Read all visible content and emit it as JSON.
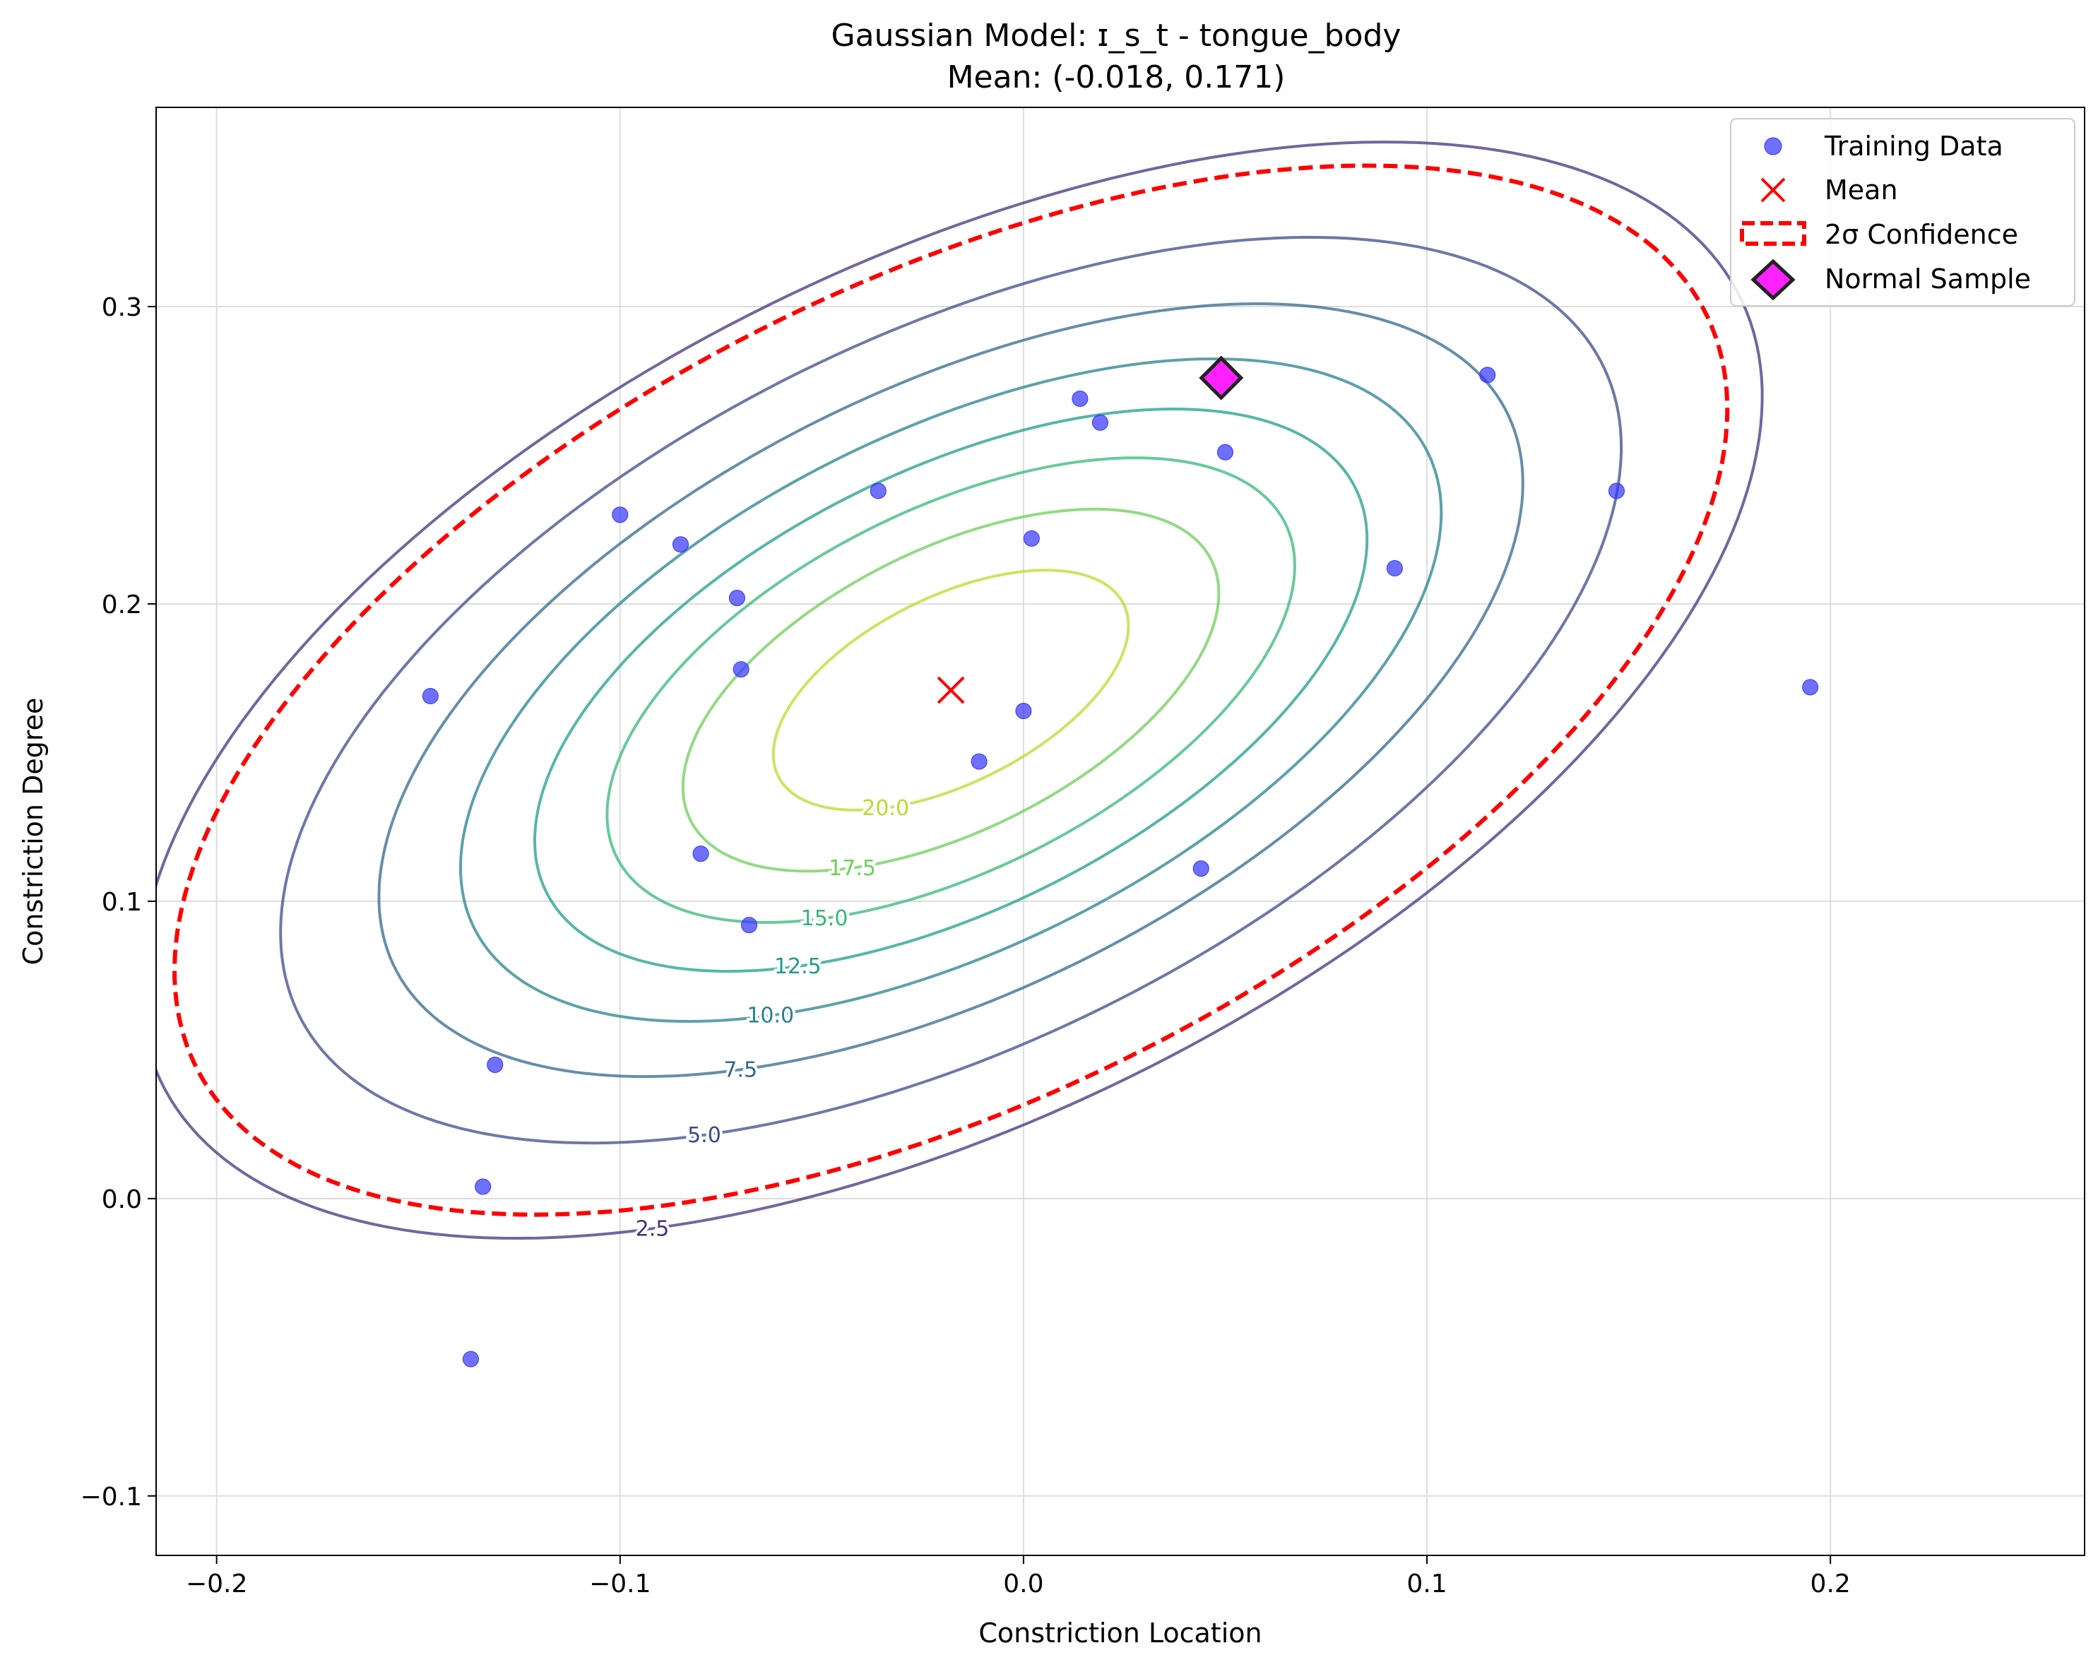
{
  "chart_data": {
    "type": "scatter",
    "title": "Gaussian Model: ɪ_s_t - tongue_body",
    "subtitle": "Mean: (-0.018, 0.171)",
    "xlabel": "Constriction Location",
    "ylabel": "Constriction Degree",
    "xlim": [
      -0.215,
      0.263
    ],
    "ylim": [
      -0.12,
      0.367
    ],
    "xticks": [
      -0.2,
      -0.1,
      0.0,
      0.1,
      0.2
    ],
    "xtick_labels": [
      "−0.2",
      "−0.1",
      "0.0",
      "0.1",
      "0.2"
    ],
    "yticks": [
      -0.1,
      0.0,
      0.1,
      0.2,
      0.3
    ],
    "ytick_labels": [
      "−0.1",
      "0.0",
      "0.1",
      "0.2",
      "0.3"
    ],
    "grid": true,
    "legend_position": "top-right",
    "legend": [
      "Training Data",
      "Mean",
      "2σ Confidence",
      "Normal Sample"
    ],
    "mean": {
      "x": -0.018,
      "y": 0.171
    },
    "training_data": {
      "color": "#3333ff",
      "points": [
        [
          -0.137,
          -0.054
        ],
        [
          -0.134,
          0.004
        ],
        [
          -0.131,
          0.045
        ],
        [
          -0.147,
          0.169
        ],
        [
          -0.1,
          0.23
        ],
        [
          -0.085,
          0.22
        ],
        [
          -0.071,
          0.202
        ],
        [
          -0.07,
          0.178
        ],
        [
          -0.08,
          0.116
        ],
        [
          -0.068,
          0.092
        ],
        [
          -0.036,
          0.238
        ],
        [
          -0.011,
          0.147
        ],
        [
          0.0,
          0.164
        ],
        [
          0.002,
          0.222
        ],
        [
          0.014,
          0.269
        ],
        [
          0.019,
          0.261
        ],
        [
          0.044,
          0.111
        ],
        [
          0.05,
          0.251
        ],
        [
          0.092,
          0.212
        ],
        [
          0.115,
          0.277
        ],
        [
          0.147,
          0.238
        ],
        [
          0.195,
          0.172
        ]
      ]
    },
    "normal_sample": {
      "x": 0.049,
      "y": 0.276,
      "color": "#ff22ff"
    },
    "confidence_2sigma": {
      "color": "#ff0000",
      "style": "dashed"
    },
    "contour_levels": [
      2.5,
      5.0,
      7.5,
      10.0,
      12.5,
      15.0,
      17.5,
      20.0
    ],
    "contour_colors": [
      "#46327e",
      "#3e4989",
      "#31688e",
      "#26828e",
      "#1f9e89",
      "#35b779",
      "#6ece58",
      "#b5de2b"
    ],
    "contour_labels": [
      "2.5",
      "5.0",
      "7.5",
      "10.0",
      "12.5",
      "15.0",
      "17.5",
      "20.0"
    ]
  }
}
